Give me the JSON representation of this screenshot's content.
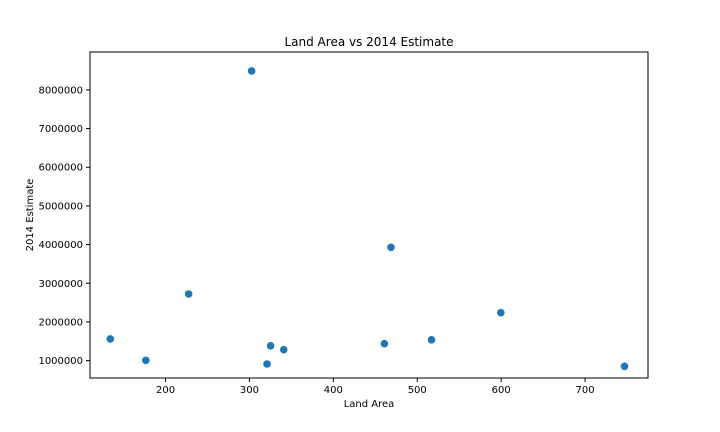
{
  "chart_data": {
    "type": "scatter",
    "title": "Land Area vs 2014 Estimate",
    "xlabel": "Land Area",
    "ylabel": "2014 Estimate",
    "xlim": [
      110,
      775
    ],
    "ylim": [
      550000,
      8980000
    ],
    "xticks": [
      200,
      300,
      400,
      500,
      600,
      700
    ],
    "yticks": [
      1000000,
      2000000,
      3000000,
      4000000,
      5000000,
      6000000,
      7000000,
      8000000
    ],
    "grid": false,
    "legend": "none",
    "marker_color": "#1f77b4",
    "points": [
      {
        "x": 302.6,
        "y": 8491079
      },
      {
        "x": 468.7,
        "y": 3928864
      },
      {
        "x": 227.6,
        "y": 2722389
      },
      {
        "x": 599.6,
        "y": 2239558
      },
      {
        "x": 134.2,
        "y": 1560297
      },
      {
        "x": 517.0,
        "y": 1537058
      },
      {
        "x": 460.9,
        "y": 1436697
      },
      {
        "x": 325.2,
        "y": 1381069
      },
      {
        "x": 340.9,
        "y": 1281047
      },
      {
        "x": 176.5,
        "y": 1006000
      },
      {
        "x": 321.0,
        "y": 912062
      },
      {
        "x": 747.0,
        "y": 853382
      }
    ]
  }
}
